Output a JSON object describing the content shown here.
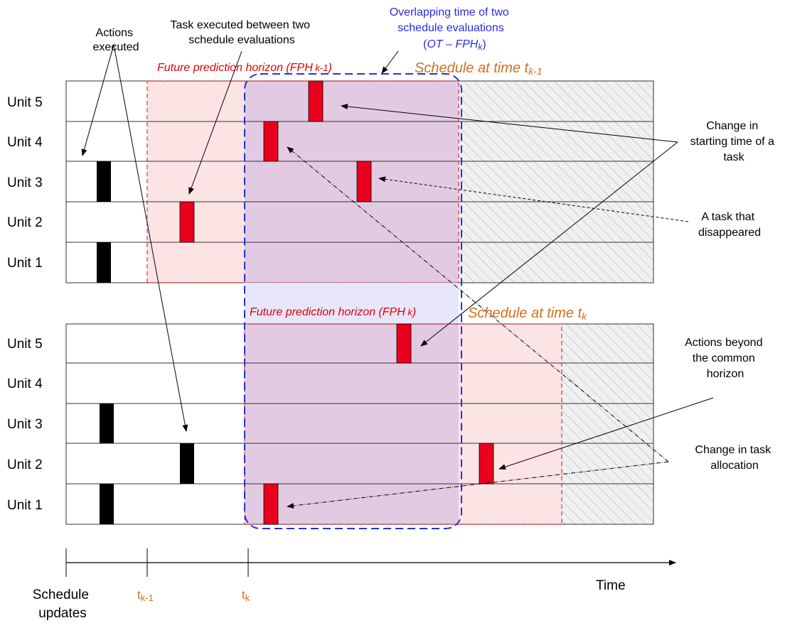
{
  "units": [
    "Unit 5",
    "Unit 4",
    "Unit 3",
    "Unit 2",
    "Unit 1"
  ],
  "annotations": {
    "actions_executed": [
      "Actions",
      "executed"
    ],
    "task_between": [
      "Task executed between two",
      "schedule evaluations"
    ],
    "overlap": [
      "Overlapping time of two",
      "schedule evaluations"
    ],
    "overlap_formula": {
      "open": "(",
      "ot": "OT – FPH",
      "k": "k",
      "close": ")"
    },
    "fph_prev": {
      "main": "Future prediction horizon (FPH",
      "sub": " k-1",
      "close": ")"
    },
    "fph_curr": {
      "main": "Future prediction horizon (FPH",
      "sub": " k",
      "close": ")"
    },
    "schedule_prev": {
      "main": "Schedule at time t",
      "sub": "k-1"
    },
    "schedule_curr": {
      "main": "Schedule at time t",
      "sub": "k"
    },
    "change_start": [
      "Change in",
      "starting time of a",
      "task"
    ],
    "task_disappeared": [
      "A task that",
      "disappeared"
    ],
    "actions_beyond": [
      "Actions beyond",
      "the common",
      "horizon"
    ],
    "change_alloc": [
      "Change in task",
      "allocation"
    ]
  },
  "axis": {
    "time_label": "Time",
    "schedule_updates": [
      "Schedule",
      "updates"
    ],
    "t_prev": {
      "main": "t",
      "sub": "k-1"
    },
    "t_curr": {
      "main": "t",
      "sub": "k"
    }
  },
  "colors": {
    "task_red": "#e8001c",
    "task_black": "#000000",
    "fph_fill": "#fde4e4",
    "overlap_fill": "#e2cbe2",
    "overlap_gap_fill": "#e8e6fb",
    "overlap_stroke": "#2233dd",
    "fph_stroke": "#e03030",
    "orange_text": "#d07020",
    "blue_text": "#2b2be0",
    "red_text": "#e00000"
  }
}
